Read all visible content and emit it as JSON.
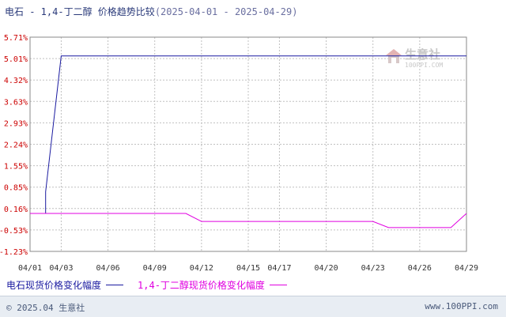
{
  "title": {
    "main": "电石 - 1,4-丁二醇 价格趋势比较",
    "range": "(2025-04-01 - 2025-04-29)"
  },
  "watermark": {
    "name": "生意社",
    "url": "100PPI.COM"
  },
  "footer": {
    "copyright": "© 2025.04 生意社",
    "site": "www.100PPI.com"
  },
  "chart_data": {
    "type": "line",
    "x": [
      "04/01",
      "04/02",
      "04/03",
      "04/04",
      "04/05",
      "04/06",
      "04/07",
      "04/08",
      "04/09",
      "04/10",
      "04/11",
      "04/12",
      "04/13",
      "04/14",
      "04/15",
      "04/16",
      "04/17",
      "04/18",
      "04/19",
      "04/20",
      "04/21",
      "04/22",
      "04/23",
      "04/24",
      "04/25",
      "04/26",
      "04/27",
      "04/28",
      "04/29"
    ],
    "x_ticks": [
      "04/01",
      "04/03",
      "04/06",
      "04/09",
      "04/12",
      "04/15",
      "04/17",
      "04/20",
      "04/23",
      "04/26",
      "04/29"
    ],
    "y_ticks": [
      "5.71%",
      "5.01%",
      "4.32%",
      "3.63%",
      "2.93%",
      "2.24%",
      "1.55%",
      "0.85%",
      "0.16%",
      "-0.53%",
      "-1.23%"
    ],
    "ylim": [
      -1.23,
      5.71
    ],
    "grid": true,
    "legend_position": "bottom-left",
    "colors": {
      "axis_label": "#cc0000",
      "grid": "#c0c0c0",
      "frame": "#888888"
    },
    "series": [
      {
        "name": "电石现货价格变化幅度",
        "color": "#1a1aa0",
        "points": [
          [
            "04/01",
            0
          ],
          [
            "04/02",
            0
          ],
          [
            "04/02",
            0.7
          ],
          [
            "04/03",
            5.1
          ],
          [
            "04/29",
            5.1
          ]
        ]
      },
      {
        "name": "1,4-丁二醇现货价格变化幅度",
        "color": "#e000e0",
        "points": [
          [
            "04/01",
            0
          ],
          [
            "04/11",
            0
          ],
          [
            "04/12",
            -0.26
          ],
          [
            "04/23",
            -0.26
          ],
          [
            "04/24",
            -0.46
          ],
          [
            "04/28",
            -0.46
          ],
          [
            "04/29",
            0
          ]
        ]
      }
    ]
  }
}
